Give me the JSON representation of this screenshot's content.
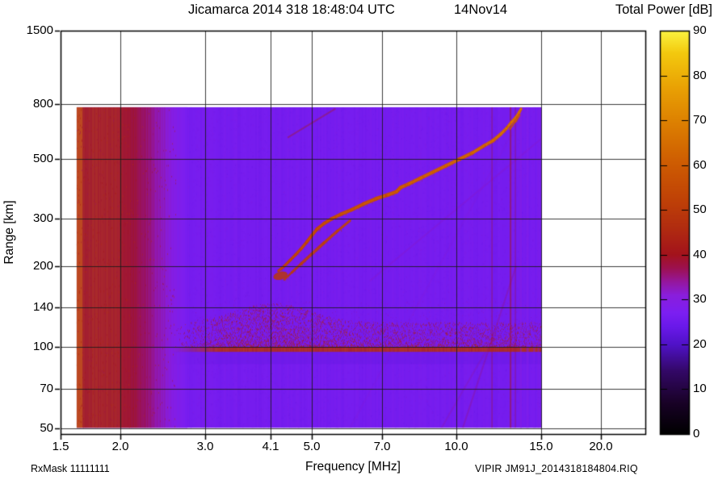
{
  "header": {
    "title_main": "Jicamarca 2014 318 18:48:04 UTC",
    "title_date": "14Nov14",
    "colorbar_title": "Total Power [dB]"
  },
  "axis_titles": {
    "x": "Frequency [MHz]",
    "y": "Range [km]"
  },
  "footer": {
    "rx_mask": "RxMask 11111111",
    "file_label": "VIPIR  JM91J_2014318184804.RIQ"
  },
  "chart_data": {
    "type": "heatmap",
    "title": "Jicamarca 2014 318 18:48:04 UTC 14Nov14",
    "xlabel": "Frequency [MHz]",
    "ylabel": "Range [km]",
    "zlabel": "Total Power [dB]",
    "x_scale": "log",
    "x_range": [
      1.5,
      24.7
    ],
    "x_tick_values": [
      1.5,
      2.0,
      3.0,
      4.1,
      5.0,
      7.0,
      10.0,
      15.0,
      20.0
    ],
    "x_tick_labels": [
      "1.5",
      "2.0",
      "3.0",
      "4.1",
      "5.0",
      "7.0",
      "10.0",
      "15.0",
      "20.0"
    ],
    "y_scale": "log",
    "y_range": [
      1500,
      47.5
    ],
    "y_tick_values": [
      1500,
      800,
      500,
      300,
      200,
      140,
      100,
      70,
      50
    ],
    "y_tick_labels": [
      "1500",
      "800",
      "500",
      "300",
      "200",
      "140",
      "100",
      "70",
      "50"
    ],
    "z_range": [
      0,
      90
    ],
    "z_tick_values": [
      0,
      10,
      20,
      30,
      40,
      50,
      60,
      70,
      80,
      90
    ],
    "grid": true,
    "legend_position": "right-colorbar",
    "palette_stops": [
      [
        0,
        "#000000"
      ],
      [
        7,
        "#190227"
      ],
      [
        14,
        "#330866"
      ],
      [
        20,
        "#5012c8"
      ],
      [
        24,
        "#6a19ea"
      ],
      [
        27,
        "#7c1ff2"
      ],
      [
        31,
        "#8a1edc"
      ],
      [
        34,
        "#95179c"
      ],
      [
        37,
        "#9d1150"
      ],
      [
        40,
        "#a3131c"
      ],
      [
        46,
        "#b12c10"
      ],
      [
        53,
        "#c14406"
      ],
      [
        61,
        "#cf5e02"
      ],
      [
        69,
        "#dc7e01"
      ],
      [
        77,
        "#e9a004"
      ],
      [
        85,
        "#f3c90e"
      ],
      [
        90,
        "#fbf440"
      ]
    ],
    "data_extent": {
      "f_mhz": [
        1.62,
        15.05
      ],
      "range_km": [
        50,
        780
      ]
    },
    "background_db": 26,
    "features": {
      "lf_interference_band": {
        "f_mhz": [
          1.62,
          2.75
        ],
        "peak_db": 46
      },
      "e_region_band": {
        "f_start_mhz": 2.55,
        "base_km": 100,
        "peak_db": 47,
        "enhance_center_mhz": 4.15
      },
      "f_trace_main": {
        "db_range": [
          50,
          65
        ],
        "points_f_km": [
          [
            4.26,
            192
          ],
          [
            4.38,
            200
          ],
          [
            4.5,
            210
          ],
          [
            4.62,
            220
          ],
          [
            4.75,
            232
          ],
          [
            4.88,
            246
          ],
          [
            5.0,
            260
          ],
          [
            5.12,
            274
          ],
          [
            5.3,
            288
          ],
          [
            5.5,
            300
          ],
          [
            5.75,
            312
          ],
          [
            6.05,
            324
          ],
          [
            6.4,
            340
          ],
          [
            6.8,
            356
          ],
          [
            7.2,
            368
          ],
          [
            7.5,
            378
          ],
          [
            7.65,
            392
          ],
          [
            7.95,
            404
          ],
          [
            8.4,
            424
          ],
          [
            8.95,
            448
          ],
          [
            9.5,
            472
          ],
          [
            10.1,
            498
          ],
          [
            10.8,
            528
          ],
          [
            11.4,
            560
          ],
          [
            11.9,
            585
          ],
          [
            12.35,
            618
          ],
          [
            12.7,
            650
          ],
          [
            13.0,
            684
          ],
          [
            13.3,
            716
          ],
          [
            13.5,
            746
          ],
          [
            13.62,
            768
          ]
        ]
      },
      "f_trace_lower": {
        "db": 50,
        "points_f_km": [
          [
            4.38,
            178
          ],
          [
            4.55,
            190
          ],
          [
            4.75,
            204
          ],
          [
            5.0,
            222
          ],
          [
            5.3,
            244
          ],
          [
            5.65,
            270
          ],
          [
            6.0,
            295
          ]
        ]
      },
      "f_trace_upper": {
        "db": 58,
        "points_f_km": [
          [
            12.9,
            645
          ],
          [
            13.25,
            690
          ],
          [
            13.5,
            728
          ]
        ]
      },
      "diagonal_streaks": [
        {
          "from_f_km": [
            6.6,
            176
          ],
          "to_f_km": [
            15.1,
            600
          ],
          "db": 33,
          "alpha": 0.22
        },
        {
          "from_f_km": [
            6.0,
            50
          ],
          "to_f_km": [
            13.9,
            765
          ],
          "db": 32,
          "alpha": 0.15
        },
        {
          "from_f_km": [
            9.3,
            50
          ],
          "to_f_km": [
            12.0,
            110
          ],
          "db": 35,
          "alpha": 0.22
        },
        {
          "from_f_km": [
            10.3,
            50
          ],
          "to_f_km": [
            13.3,
            200
          ],
          "db": 36,
          "alpha": 0.28
        },
        {
          "from_f_km": [
            4.45,
            600
          ],
          "to_f_km": [
            5.6,
            770
          ],
          "db": 42,
          "alpha": 0.4
        }
      ],
      "vertical_interference": [
        {
          "f": 11.85,
          "db": 40,
          "alpha": 0.35,
          "w": 1.5
        },
        {
          "f": 12.95,
          "db": 41,
          "alpha": 0.5,
          "w": 2
        },
        {
          "f": 13.25,
          "db": 39,
          "alpha": 0.3,
          "w": 1.5
        },
        {
          "f": 13.6,
          "db": 30,
          "alpha": 0.5,
          "w": 2
        },
        {
          "f": 14.05,
          "db": 29,
          "alpha": 0.5,
          "w": 3
        },
        {
          "f": 14.5,
          "db": 28,
          "alpha": 0.45,
          "w": 2
        },
        {
          "f": 14.8,
          "db": 29,
          "alpha": 0.4,
          "w": 2
        }
      ]
    }
  }
}
